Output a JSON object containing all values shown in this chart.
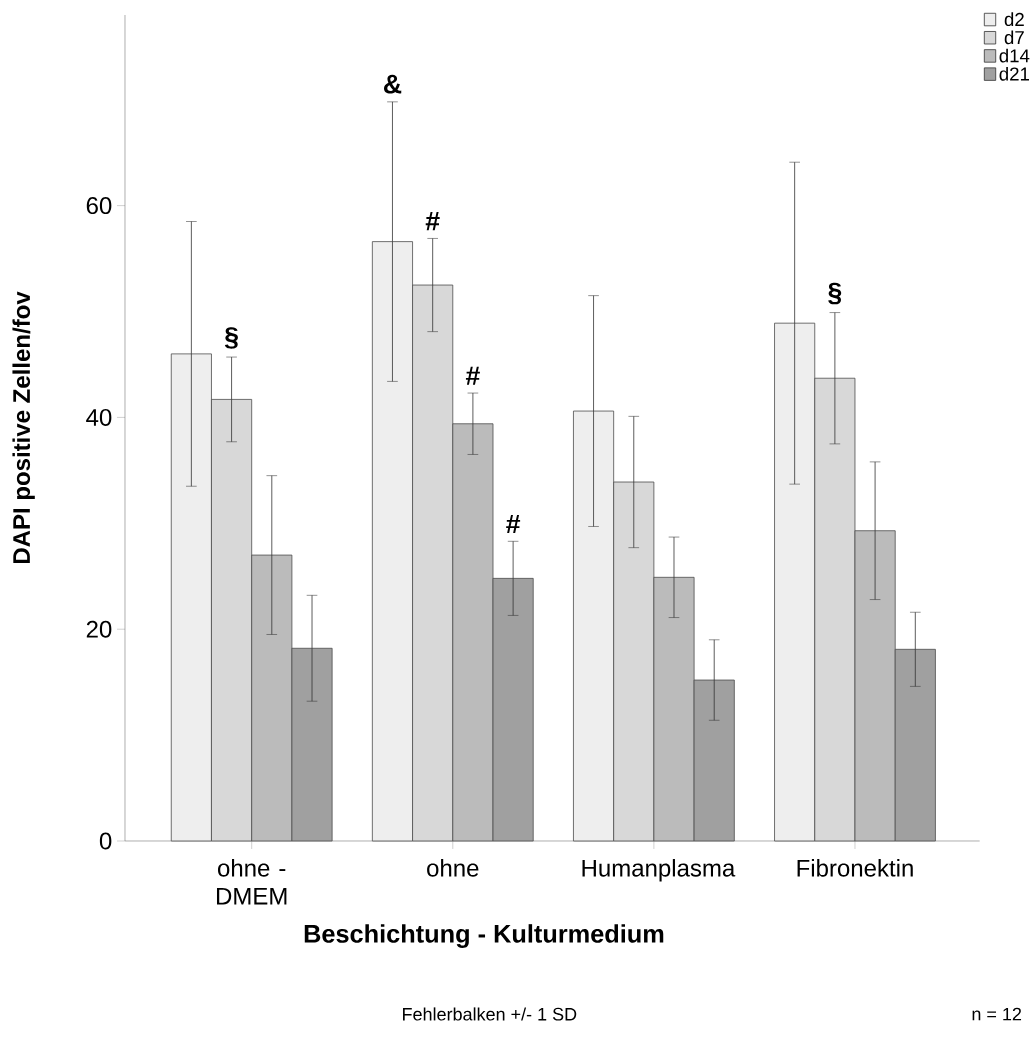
{
  "chart_data": {
    "type": "bar",
    "xlabel": "Beschichtung - Kulturmedium",
    "ylabel": "DAPI positive Zellen/fov",
    "categories": [
      "ohne - DMEM",
      "ohne",
      "Humanplasma",
      "Fibronektin"
    ],
    "series": [
      {
        "name": "d2",
        "color": "#eeeeee",
        "values": [
          46,
          56.6,
          40.6,
          48.9
        ],
        "errors": [
          12.5,
          13.2,
          10.9,
          15.2
        ]
      },
      {
        "name": "d7",
        "color": "#d8d8d8",
        "values": [
          41.7,
          52.5,
          33.9,
          43.7
        ],
        "errors": [
          4,
          4.4,
          6.2,
          6.2
        ]
      },
      {
        "name": "d14",
        "color": "#bbbbbb",
        "values": [
          27,
          39.4,
          24.9,
          29.3
        ],
        "errors": [
          7.5,
          2.9,
          3.8,
          6.5
        ]
      },
      {
        "name": "d21",
        "color": "#a0a0a0",
        "values": [
          18.2,
          24.8,
          15.2,
          18.1
        ],
        "errors": [
          5,
          3.5,
          3.8,
          3.5
        ]
      }
    ],
    "ylim": [
      0,
      78
    ],
    "yticks": [
      0,
      20,
      40,
      60
    ],
    "grid": false,
    "legend": "top right",
    "annotations": [
      "§",
      "&",
      "#",
      {
        "text": "#",
        "x": "ohne",
        "y": 42.3
      },
      {
        "text": "#",
        "x": "ohne",
        "y": 28.3
      },
      "§",
      "Fehlerbalken  +/- 1 SD",
      "n = 12"
    ]
  }
}
